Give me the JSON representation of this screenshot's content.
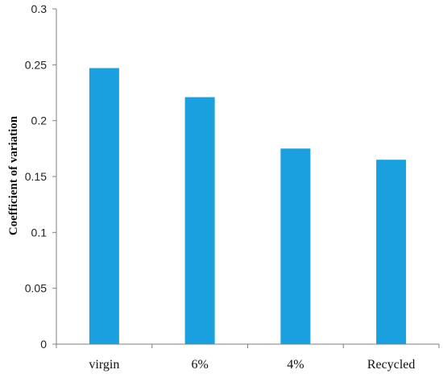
{
  "chart_data": {
    "type": "bar",
    "title": "",
    "xlabel": "",
    "ylabel": "Coefficient of variation",
    "categories": [
      "virgin",
      "6%",
      "4%",
      "Recycled"
    ],
    "values": [
      0.247,
      0.221,
      0.175,
      0.165
    ],
    "ylim": [
      0,
      0.3
    ],
    "yticks": [
      "0",
      "0.05",
      "0.1",
      "0.15",
      "0.2",
      "0.25",
      "0.3"
    ],
    "grid": false,
    "legend": "none",
    "bar_color": "#1a9fdf",
    "axis_color": "#7f7f7f"
  }
}
